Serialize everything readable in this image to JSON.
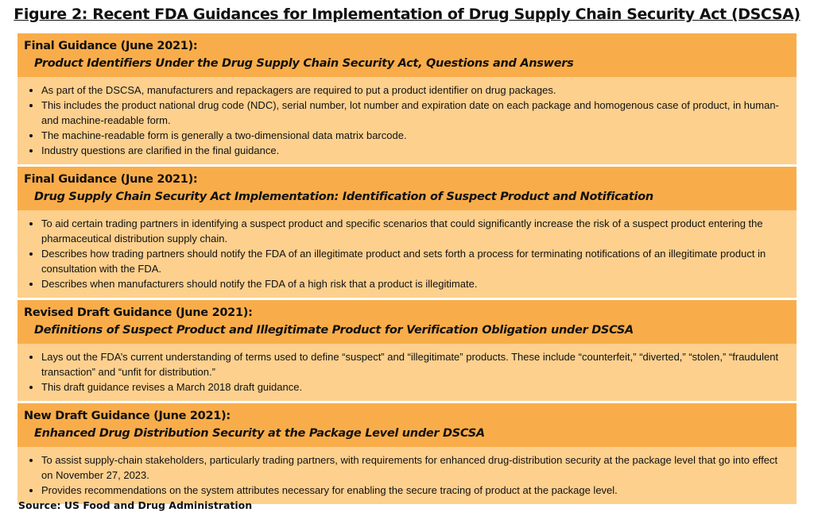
{
  "title": "Figure 2: Recent FDA Guidances for Implementation of Drug Supply Chain Security Act (DSCSA)",
  "sections": [
    {
      "label": "Final Guidance (June 2021):",
      "subtitle": "Product Identifiers Under the Drug Supply Chain Security Act, Questions and Answers",
      "bullets": [
        "As part of the DSCSA, manufacturers and repackagers are required to put a product identifier on drug packages.",
        "This includes the product national drug code (NDC), serial number, lot number and expiration date on each package and homogenous case of product, in human- and machine-readable form.",
        "The machine-readable form is generally a two-dimensional data matrix barcode.",
        "Industry questions are clarified in the final guidance."
      ]
    },
    {
      "label": "Final Guidance (June 2021):",
      "subtitle": "Drug Supply Chain Security Act Implementation: Identification of Suspect Product and Notification",
      "bullets": [
        "To aid certain trading partners in identifying a suspect product and specific scenarios that could significantly increase the risk of a suspect product entering the pharmaceutical distribution supply chain.",
        "Describes how trading partners should notify the FDA of an illegitimate product and sets forth a process for terminating notifications of an illegitimate product in consultation with the FDA.",
        "Describes when manufacturers should notify the FDA of a high risk that a product is illegitimate."
      ]
    },
    {
      "label": "Revised Draft Guidance (June 2021):",
      "subtitle": "Definitions of Suspect Product and Illegitimate Product for Verification Obligation under DSCSA",
      "bullets": [
        "Lays out the FDA’s current understanding of terms used to define “suspect” and “illegitimate” products. These include “counterfeit,” “diverted,” “stolen,” “fraudulent transaction” and “unfit for distribution.”",
        "This draft guidance revises a March 2018 draft guidance."
      ]
    },
    {
      "label": "New Draft Guidance (June 2021):",
      "subtitle": "Enhanced Drug Distribution Security at the Package Level under DSCSA",
      "bullets": [
        "To assist supply-chain stakeholders, particularly trading partners, with requirements for enhanced drug-distribution security at the package level that go into effect on November 27, 2023.",
        "Provides recommendations on the system attributes necessary for enabling the secure tracing of product at the package level."
      ]
    }
  ],
  "source": "Source: US Food and Drug Administration",
  "colors": {
    "header_bg": "#f9ad4a",
    "body_bg": "#fdd08e"
  }
}
